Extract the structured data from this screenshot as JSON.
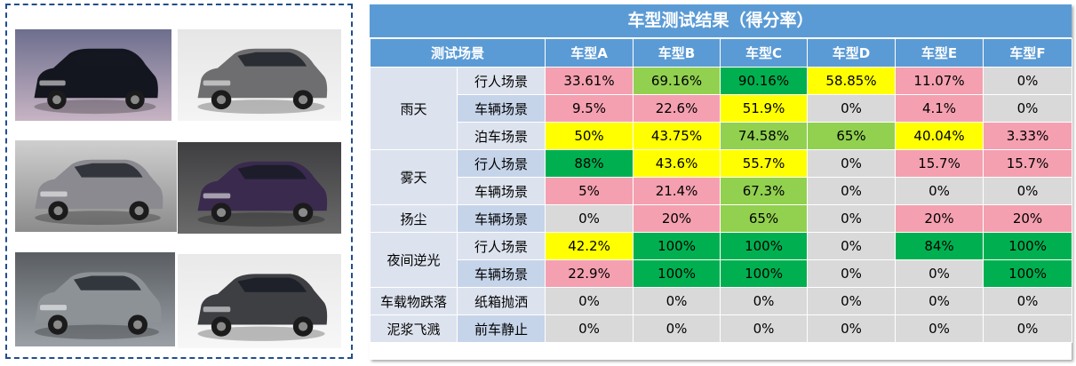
{
  "images": [
    {
      "name": "black-mpv-photo",
      "bg1": "#6d6e8e",
      "bg2": "#c7b4c3",
      "body": "#14161f"
    },
    {
      "name": "gray-suv-photo",
      "bg1": "#e6e6e6",
      "bg2": "#f4f4f4",
      "body": "#6e6e70"
    },
    {
      "name": "silver-suv-photo",
      "bg1": "#cfcfcf",
      "bg2": "#8c8c8c",
      "body": "#8a8a90"
    },
    {
      "name": "purple-suv-photo",
      "bg1": "#3f3f42",
      "bg2": "#6a6a6a",
      "body": "#3a2a4e"
    },
    {
      "name": "gray-crossover-photo",
      "bg1": "#5a5e63",
      "bg2": "#9aa0a6",
      "body": "#8d9297"
    },
    {
      "name": "dark-gray-suv-photo",
      "bg1": "#e9e9e9",
      "bg2": "#f7f7f7",
      "body": "#3d3f43"
    }
  ],
  "table": {
    "title": "车型测试结果（得分率）",
    "scenario_header": "测试场景",
    "models": [
      "车型A",
      "车型B",
      "车型C",
      "车型D",
      "车型E",
      "车型F"
    ],
    "groups": [
      {
        "condition": "雨天",
        "rows": [
          {
            "scenario": "行人场景",
            "shade": "sub",
            "values": [
              "33.61%",
              "69.16%",
              "90.16%",
              "58.85%",
              "11.07%",
              "0%"
            ],
            "colors": [
              "pink",
              "lgreen",
              "green",
              "yellow",
              "pink",
              "gray"
            ]
          },
          {
            "scenario": "车辆场景",
            "shade": "alt",
            "values": [
              "9.5%",
              "22.6%",
              "51.9%",
              "0%",
              "4.1%",
              "0%"
            ],
            "colors": [
              "pink",
              "pink",
              "yellow",
              "gray",
              "pink",
              "gray"
            ]
          },
          {
            "scenario": "泊车场景",
            "shade": "sub",
            "values": [
              "50%",
              "43.75%",
              "74.58%",
              "65%",
              "40.04%",
              "3.33%"
            ],
            "colors": [
              "yellow",
              "yellow",
              "lgreen",
              "lgreen",
              "yellow",
              "pink"
            ]
          }
        ]
      },
      {
        "condition": "雾天",
        "rows": [
          {
            "scenario": "行人场景",
            "shade": "alt",
            "values": [
              "88%",
              "43.6%",
              "55.7%",
              "0%",
              "15.7%",
              "15.7%"
            ],
            "colors": [
              "green",
              "yellow",
              "yellow",
              "gray",
              "pink",
              "pink"
            ]
          },
          {
            "scenario": "车辆场景",
            "shade": "sub",
            "values": [
              "5%",
              "21.4%",
              "67.3%",
              "0%",
              "0%",
              "0%"
            ],
            "colors": [
              "pink",
              "pink",
              "lgreen",
              "gray",
              "gray",
              "gray"
            ]
          }
        ]
      },
      {
        "condition": "扬尘",
        "rows": [
          {
            "scenario": "车辆场景",
            "shade": "alt",
            "values": [
              "0%",
              "20%",
              "65%",
              "0%",
              "20%",
              "20%"
            ],
            "colors": [
              "gray",
              "pink",
              "lgreen",
              "gray",
              "pink",
              "pink"
            ]
          }
        ]
      },
      {
        "condition": "夜间逆光",
        "rows": [
          {
            "scenario": "行人场景",
            "shade": "sub",
            "values": [
              "42.2%",
              "100%",
              "100%",
              "0%",
              "84%",
              "100%"
            ],
            "colors": [
              "yellow",
              "green",
              "green",
              "gray",
              "green",
              "green"
            ]
          },
          {
            "scenario": "车辆场景",
            "shade": "alt",
            "values": [
              "22.9%",
              "100%",
              "100%",
              "0%",
              "0%",
              "100%"
            ],
            "colors": [
              "pink",
              "green",
              "green",
              "gray",
              "gray",
              "green"
            ]
          }
        ]
      },
      {
        "condition": "车载物跌落",
        "rows": [
          {
            "scenario": "纸箱抛洒",
            "shade": "sub",
            "values": [
              "0%",
              "0%",
              "0%",
              "0%",
              "0%",
              "0%"
            ],
            "colors": [
              "gray",
              "gray",
              "gray",
              "gray",
              "gray",
              "gray"
            ]
          }
        ]
      },
      {
        "condition": "泥浆飞溅",
        "rows": [
          {
            "scenario": "前车静止",
            "shade": "alt",
            "values": [
              "0%",
              "0%",
              "0%",
              "0%",
              "0%",
              "0%"
            ],
            "colors": [
              "gray",
              "gray",
              "gray",
              "gray",
              "gray",
              "gray"
            ]
          }
        ]
      }
    ]
  }
}
